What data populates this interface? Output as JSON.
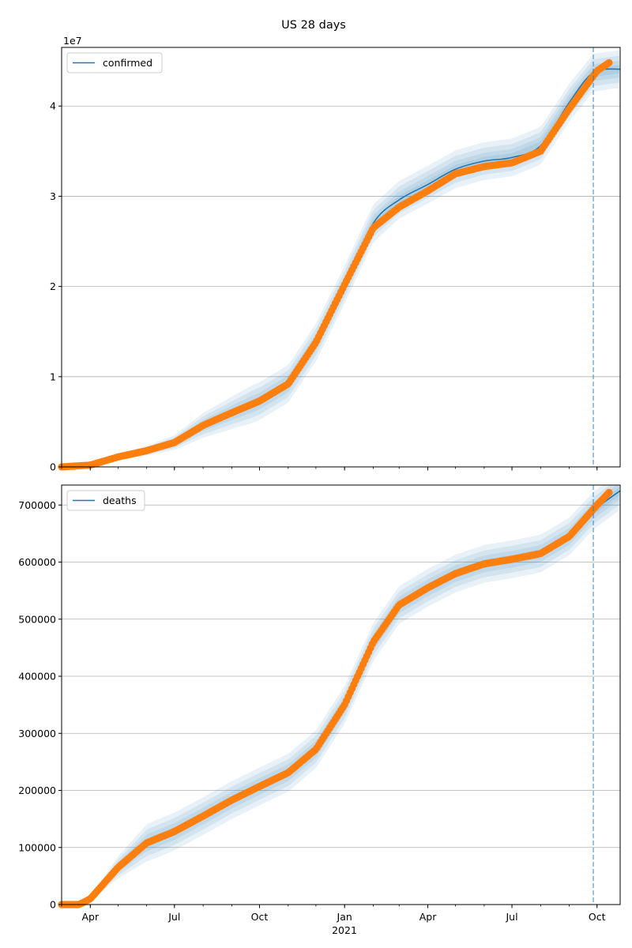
{
  "figure_title": "US 28 days",
  "colors": {
    "model": "#1f77b4",
    "observed": "#ff7f0e",
    "band": "#1f77b4",
    "grid": "#b0b0b0",
    "forecast_line": "#1f77b4"
  },
  "chart_data": [
    {
      "type": "line",
      "title": "",
      "xlabel": "",
      "ylabel": "",
      "x_unit": "date",
      "xlim": [
        "2020-03-01",
        "2021-10-26"
      ],
      "ylim": [
        0,
        46500000
      ],
      "y_scale_label": "1e7",
      "y_ticks": [
        0,
        10000000,
        20000000,
        30000000,
        40000000
      ],
      "y_tick_labels": [
        "0",
        "1",
        "2",
        "3",
        "4"
      ],
      "grid": "horizontal",
      "legend": {
        "placement": "top-left",
        "entries": [
          "confirmed"
        ]
      },
      "forecast_start": "2021-09-27",
      "series": [
        {
          "name": "confirmed",
          "kind": "model-line",
          "x": [
            "2020-03-01",
            "2020-04-01",
            "2020-05-01",
            "2020-06-01",
            "2020-07-01",
            "2020-08-01",
            "2020-09-01",
            "2020-10-01",
            "2020-11-01",
            "2020-12-01",
            "2021-01-01",
            "2021-02-01",
            "2021-03-01",
            "2021-04-01",
            "2021-05-01",
            "2021-06-01",
            "2021-07-01",
            "2021-08-01",
            "2021-09-01",
            "2021-09-27",
            "2021-10-26"
          ],
          "values": [
            0,
            200000,
            1100000,
            1800000,
            2700000,
            4600000,
            6000000,
            7300000,
            9200000,
            13800000,
            20200000,
            27000000,
            29600000,
            31300000,
            33000000,
            33900000,
            34300000,
            35600000,
            40400000,
            43700000,
            44100000
          ]
        },
        {
          "name": "",
          "kind": "observed-points",
          "x": [
            "2020-03-01",
            "2020-04-01",
            "2020-05-01",
            "2020-06-01",
            "2020-07-01",
            "2020-08-01",
            "2020-09-01",
            "2020-10-01",
            "2020-11-01",
            "2020-12-01",
            "2021-01-01",
            "2021-02-01",
            "2021-03-01",
            "2021-04-01",
            "2021-05-01",
            "2021-06-01",
            "2021-07-01",
            "2021-08-01",
            "2021-09-01",
            "2021-10-01",
            "2021-10-14"
          ],
          "values": [
            0,
            200000,
            1100000,
            1800000,
            2700000,
            4600000,
            6000000,
            7300000,
            9200000,
            13800000,
            20200000,
            26500000,
            28800000,
            30600000,
            32500000,
            33300000,
            33700000,
            35000000,
            39700000,
            43900000,
            44800000
          ]
        }
      ]
    },
    {
      "type": "line",
      "title": "",
      "xlabel": "",
      "ylabel": "",
      "x_unit": "date",
      "xlim": [
        "2020-03-01",
        "2021-10-26"
      ],
      "ylim": [
        0,
        735000
      ],
      "y_ticks": [
        0,
        100000,
        200000,
        300000,
        400000,
        500000,
        600000,
        700000
      ],
      "y_tick_labels": [
        "0",
        "100000",
        "200000",
        "300000",
        "400000",
        "500000",
        "600000",
        "700000"
      ],
      "x_ticks": [
        "2020-04-01",
        "2020-07-01",
        "2020-10-01",
        "2021-01-01",
        "2021-04-01",
        "2021-07-01",
        "2021-10-01"
      ],
      "x_tick_labels": [
        "Apr",
        "Jul",
        "Oct",
        "Jan",
        "Apr",
        "Jul",
        "Oct"
      ],
      "x_year_label": "2021",
      "grid": "horizontal",
      "legend": {
        "placement": "top-left",
        "entries": [
          "deaths"
        ]
      },
      "forecast_start": "2021-09-27",
      "series": [
        {
          "name": "deaths",
          "kind": "model-line",
          "x": [
            "2020-03-01",
            "2020-03-20",
            "2020-04-01",
            "2020-05-01",
            "2020-06-01",
            "2020-07-01",
            "2020-08-01",
            "2020-09-01",
            "2020-10-01",
            "2020-11-01",
            "2020-12-01",
            "2021-01-01",
            "2021-02-01",
            "2021-03-01",
            "2021-04-01",
            "2021-05-01",
            "2021-06-01",
            "2021-07-01",
            "2021-08-01",
            "2021-09-01",
            "2021-09-27",
            "2021-10-26"
          ],
          "values": [
            0,
            0,
            10000,
            65000,
            108000,
            128000,
            155000,
            183000,
            207000,
            231000,
            272000,
            350000,
            460000,
            525000,
            555000,
            580000,
            597000,
            605000,
            615000,
            645000,
            690000,
            725000
          ]
        },
        {
          "name": "",
          "kind": "observed-points",
          "x": [
            "2020-03-01",
            "2020-03-20",
            "2020-04-01",
            "2020-05-01",
            "2020-06-01",
            "2020-07-01",
            "2020-08-01",
            "2020-09-01",
            "2020-10-01",
            "2020-11-01",
            "2020-12-01",
            "2021-01-01",
            "2021-02-01",
            "2021-03-01",
            "2021-04-01",
            "2021-05-01",
            "2021-06-01",
            "2021-07-01",
            "2021-08-01",
            "2021-09-01",
            "2021-10-01",
            "2021-10-14"
          ],
          "values": [
            0,
            0,
            10000,
            65000,
            108000,
            128000,
            155000,
            183000,
            207000,
            231000,
            272000,
            350000,
            460000,
            525000,
            555000,
            580000,
            597000,
            605000,
            615000,
            645000,
            700000,
            722000
          ]
        }
      ]
    }
  ]
}
